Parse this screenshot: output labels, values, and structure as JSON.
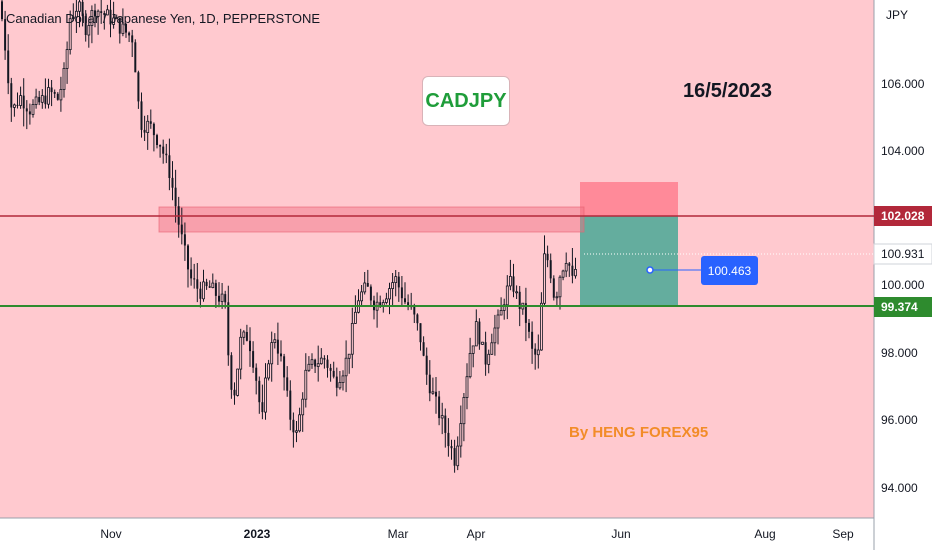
{
  "header": {
    "symbol_title": "Canadian Dollar / Japanese Yen, 1D, PEPPERSTONE"
  },
  "annotations": {
    "symbol_badge": "CADJPY",
    "date_text": "16/5/2023",
    "author_text": "By HENG FOREX95",
    "callout_value": "100.463"
  },
  "chart_data": {
    "type": "candlestick",
    "title": "Canadian Dollar / Japanese Yen, 1D, PEPPERSTONE",
    "currency": "JPY",
    "ylim": [
      93.0,
      108.5
    ],
    "y_ticks": [
      "94.000",
      "96.000",
      "98.000",
      "100.000",
      "104.000",
      "106.000"
    ],
    "x_ticks": [
      "Nov",
      "2023",
      "Mar",
      "Apr",
      "Jun",
      "Aug",
      "Sep"
    ],
    "grid": false,
    "price_levels": [
      {
        "name": "resistance",
        "value": 102.028,
        "label": "102.028",
        "color": "#b2283a"
      },
      {
        "name": "support",
        "value": 99.374,
        "label": "99.374",
        "color": "#2e8b2e"
      }
    ],
    "current_price": {
      "value": 100.931,
      "label": "100.931"
    },
    "resistance_zone": {
      "from": 101.5,
      "to": 102.3
    },
    "position": {
      "type": "long",
      "entry": 102.028,
      "stop_loss": 102.9,
      "take_profit": 99.374
    },
    "series_path": [
      [
        0,
        108.5
      ],
      [
        5,
        107.2
      ],
      [
        12,
        105.2
      ],
      [
        20,
        105.7
      ],
      [
        30,
        105.3
      ],
      [
        40,
        105.5
      ],
      [
        50,
        105.8
      ],
      [
        58,
        105.6
      ],
      [
        65,
        106.4
      ],
      [
        70,
        108.0
      ],
      [
        78,
        108.4
      ],
      [
        85,
        107.7
      ],
      [
        95,
        108.3
      ],
      [
        105,
        108.1
      ],
      [
        115,
        107.9
      ],
      [
        125,
        107.6
      ],
      [
        133,
        107.4
      ],
      [
        140,
        104.9
      ],
      [
        150,
        104.8
      ],
      [
        160,
        104.3
      ],
      [
        170,
        103.4
      ],
      [
        180,
        101.7
      ],
      [
        190,
        100.3
      ],
      [
        200,
        99.9
      ],
      [
        210,
        100.0
      ],
      [
        220,
        99.7
      ],
      [
        225,
        99.5
      ],
      [
        230,
        97.3
      ],
      [
        235,
        96.9
      ],
      [
        240,
        98.4
      ],
      [
        248,
        98.6
      ],
      [
        255,
        97.6
      ],
      [
        262,
        96.0
      ],
      [
        268,
        97.9
      ],
      [
        275,
        98.6
      ],
      [
        282,
        97.7
      ],
      [
        290,
        96.2
      ],
      [
        297,
        95.6
      ],
      [
        305,
        97.4
      ],
      [
        315,
        97.8
      ],
      [
        325,
        97.9
      ],
      [
        335,
        97.2
      ],
      [
        345,
        97.7
      ],
      [
        350,
        98.3
      ],
      [
        358,
        99.7
      ],
      [
        367,
        100.0
      ],
      [
        375,
        99.5
      ],
      [
        385,
        99.8
      ],
      [
        395,
        100.3
      ],
      [
        405,
        99.6
      ],
      [
        412,
        99.3
      ],
      [
        420,
        98.6
      ],
      [
        425,
        97.6
      ],
      [
        432,
        96.9
      ],
      [
        440,
        96.2
      ],
      [
        447,
        95.6
      ],
      [
        455,
        94.9
      ],
      [
        462,
        96.5
      ],
      [
        470,
        98.1
      ],
      [
        477,
        98.9
      ],
      [
        485,
        97.8
      ],
      [
        492,
        98.6
      ],
      [
        500,
        99.1
      ],
      [
        505,
        99.8
      ],
      [
        512,
        100.2
      ],
      [
        518,
        99.6
      ],
      [
        525,
        99.2
      ],
      [
        532,
        98.1
      ],
      [
        538,
        97.9
      ],
      [
        545,
        101.1
      ],
      [
        550,
        100.6
      ],
      [
        555,
        99.6
      ],
      [
        560,
        100.4
      ],
      [
        567,
        101.0
      ],
      [
        573,
        100.1
      ],
      [
        578,
        101.0
      ]
    ]
  },
  "colors": {
    "background": "#ffc9cf",
    "axis_background": "#ffffff",
    "candle": "#131722",
    "resistance_line": "#b2283a",
    "support_line": "#2e8b2e",
    "stop_zone": "#ff8a99",
    "target_zone": "#64ad9e",
    "callout": "#2962ff",
    "badge_text": "#1f9d3a",
    "author_text": "#f28c28"
  }
}
